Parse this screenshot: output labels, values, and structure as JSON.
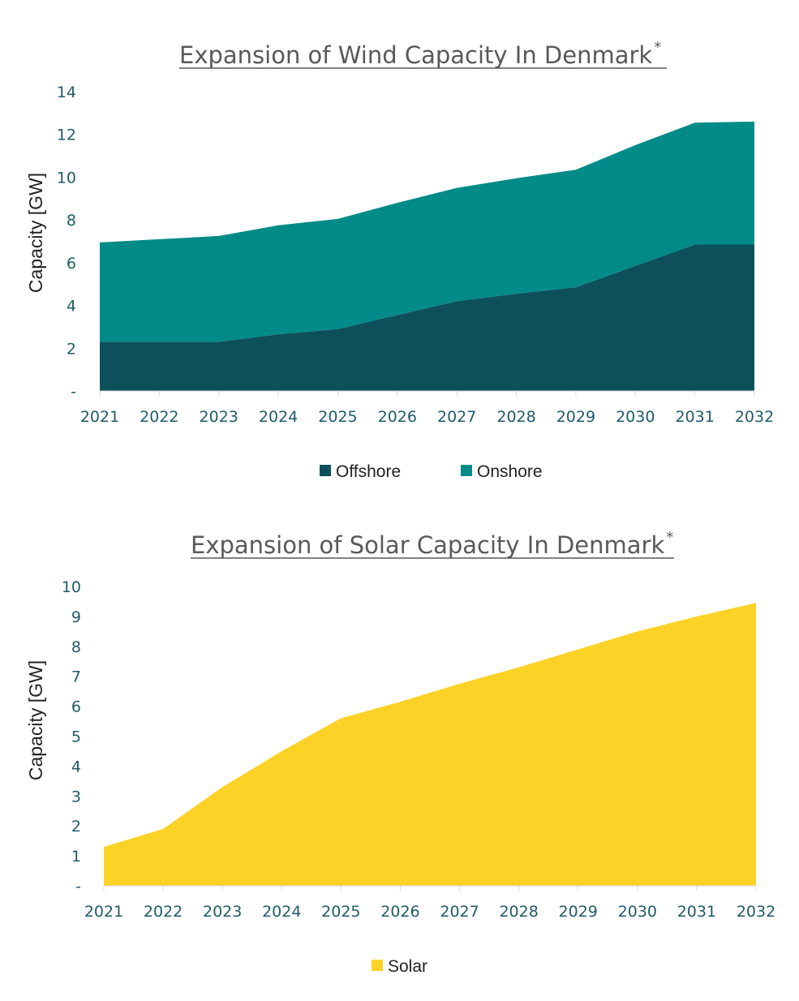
{
  "colors": {
    "offshore": "#0d505c",
    "onshore": "#008b88",
    "solar": "#fdd227",
    "title": "#595959",
    "tick": "#1f5b6b",
    "axis": "#d9d9d9"
  },
  "chart_data": [
    {
      "type": "area",
      "stacked": true,
      "title": "Expansion of Wind Capacity In Denmark",
      "title_marker": "*",
      "ylabel": "Capacity [GW]",
      "xlabel": "",
      "ylim": [
        0,
        14
      ],
      "y_ticks": [
        "-",
        "2",
        "4",
        "6",
        "8",
        "10",
        "12",
        "14"
      ],
      "categories": [
        "2021",
        "2022",
        "2023",
        "2024",
        "2025",
        "2026",
        "2027",
        "2028",
        "2029",
        "2030",
        "2031",
        "2032"
      ],
      "series": [
        {
          "name": "Offshore",
          "color": "#0d505c",
          "values": [
            2.3,
            2.3,
            2.3,
            2.65,
            2.9,
            3.55,
            4.2,
            4.55,
            4.85,
            5.85,
            6.85,
            6.85
          ]
        },
        {
          "name": "Onshore",
          "color": "#008b88",
          "values": [
            4.65,
            4.8,
            4.95,
            5.1,
            5.15,
            5.25,
            5.3,
            5.4,
            5.5,
            5.65,
            5.7,
            5.75
          ]
        }
      ],
      "legend": "bottom",
      "grid": false
    },
    {
      "type": "area",
      "title": "Expansion of Solar Capacity In Denmark",
      "title_marker": "*",
      "ylabel": "Capacity [GW]",
      "xlabel": "",
      "ylim": [
        0,
        10
      ],
      "y_ticks": [
        "-",
        "1",
        "2",
        "3",
        "4",
        "5",
        "6",
        "7",
        "8",
        "9",
        "10"
      ],
      "categories": [
        "2021",
        "2022",
        "2023",
        "2024",
        "2025",
        "2026",
        "2027",
        "2028",
        "2029",
        "2030",
        "2031",
        "2032"
      ],
      "series": [
        {
          "name": "Solar",
          "color": "#fdd227",
          "values": [
            1.3,
            1.9,
            3.3,
            4.5,
            5.6,
            6.15,
            6.75,
            7.3,
            7.9,
            8.5,
            9.0,
            9.45
          ]
        }
      ],
      "legend": "bottom",
      "grid": false
    }
  ]
}
